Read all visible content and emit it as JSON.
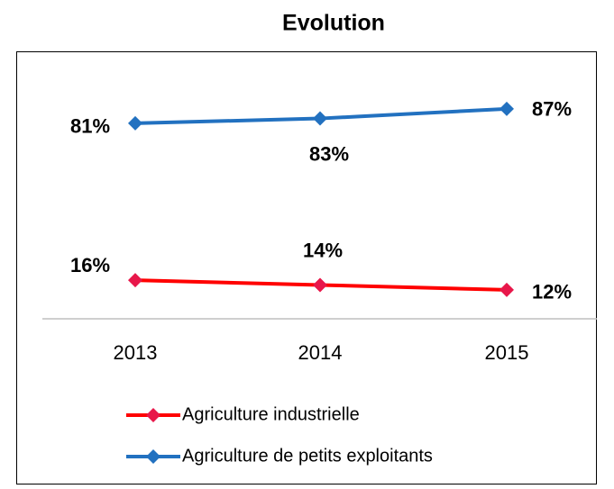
{
  "chart_data": {
    "type": "line",
    "title": "Evolution",
    "categories": [
      "2013",
      "2014",
      "2015"
    ],
    "series": [
      {
        "name": "Agriculture industrielle",
        "color": "#ff0000",
        "marker_color": "#e8174a",
        "values": [
          16,
          14,
          12
        ],
        "value_labels": [
          "16%",
          "14%",
          "12%"
        ]
      },
      {
        "name": "Agriculture de petits exploitants",
        "color": "#2271c0",
        "marker_color": "#2271c0",
        "values": [
          81,
          83,
          87
        ],
        "value_labels": [
          "81%",
          "83%",
          "87%"
        ]
      }
    ],
    "ylim": [
      0,
      100
    ],
    "grid": false,
    "legend": "bottom"
  }
}
